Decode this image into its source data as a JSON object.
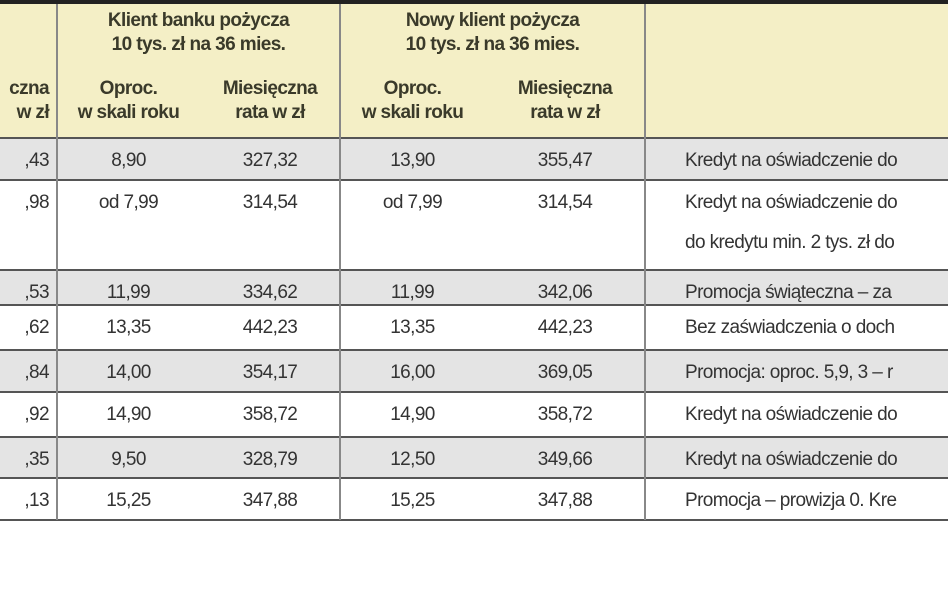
{
  "header": {
    "groups": [
      {
        "lines": [
          "Klient banku pożycza",
          "10 tys. zł na 36 mies."
        ]
      },
      {
        "lines": [
          "Nowy klient pożycza",
          "10 tys. zł na 36 mies."
        ]
      }
    ],
    "columns": [
      {
        "lines": [
          "czna",
          "w zł"
        ]
      },
      {
        "lines": [
          "Oproc.",
          "w skali roku"
        ]
      },
      {
        "lines": [
          "Miesięczna",
          "rata w zł"
        ]
      },
      {
        "lines": [
          "Oproc.",
          "w skali roku"
        ]
      },
      {
        "lines": [
          "Miesięczna",
          "rata w zł"
        ]
      }
    ]
  },
  "table": {
    "rows": [
      {
        "cells": [
          ",43",
          "8,90",
          "327,32",
          "13,90",
          "355,47"
        ],
        "note": [
          "Kredyt na oświadczenie do"
        ]
      },
      {
        "cells": [
          ",98",
          "od 7,99",
          "314,54",
          "od 7,99",
          "314,54"
        ],
        "note": [
          "Kredyt na oświadczenie do",
          "do kredytu min. 2 tys. zł do"
        ]
      },
      {
        "cells": [
          ",53",
          "11,99",
          "334,62",
          "11,99",
          "342,06"
        ],
        "note": [
          "Promocja świąteczna – za"
        ]
      },
      {
        "cells": [
          ",62",
          "13,35",
          "442,23",
          "13,35",
          "442,23"
        ],
        "note": [
          "Bez zaświadczenia o doch"
        ]
      },
      {
        "cells": [
          ",84",
          "14,00",
          "354,17",
          "16,00",
          "369,05"
        ],
        "note": [
          "Promocja: oproc. 5,9, 3 – r"
        ]
      },
      {
        "cells": [
          ",92",
          "14,90",
          "358,72",
          "14,90",
          "358,72"
        ],
        "note": [
          "Kredyt na oświadczenie do"
        ]
      },
      {
        "cells": [
          ",35",
          "9,50",
          "328,79",
          "12,50",
          "349,66"
        ],
        "note": [
          "Kredyt na oświadczenie do"
        ]
      },
      {
        "cells": [
          ",13",
          "15,25",
          "347,88",
          "15,25",
          "347,88"
        ],
        "note": [
          "Promocja – prowizja 0. Kre"
        ]
      }
    ]
  }
}
